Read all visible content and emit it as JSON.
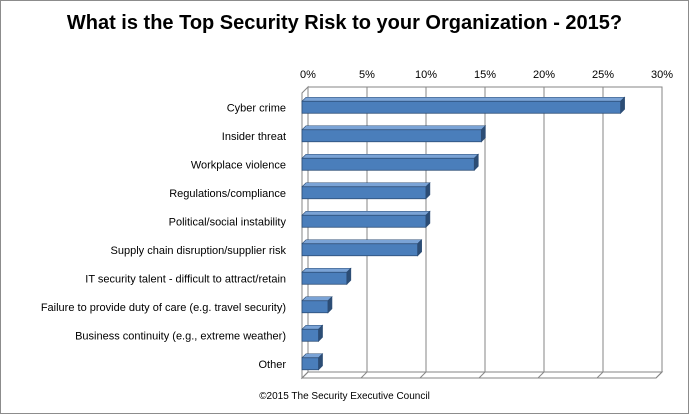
{
  "chart_data": {
    "type": "bar",
    "orientation": "horizontal",
    "title": "What is the Top Security Risk to your Organization - 2015?",
    "categories": [
      "Cyber crime",
      "Insider threat",
      "Workplace violence",
      "Regulations/compliance",
      "Political/social instability",
      "Supply chain disruption/supplier risk",
      "IT security talent - difficult to attract/retain",
      "Failure to provide duty of care (e.g. travel security)",
      "Business continuity (e.g., extreme weather)",
      "Other"
    ],
    "values": [
      27,
      15.2,
      14.6,
      10.5,
      10.5,
      9.8,
      3.8,
      2.2,
      1.4,
      1.4
    ],
    "value_unit": "%",
    "xlim": [
      0,
      30
    ],
    "xticks": [
      "0%",
      "5%",
      "10%",
      "15%",
      "20%",
      "25%",
      "30%"
    ],
    "x_axis_position": "top",
    "grid": true,
    "legend": "none",
    "bar_color": "#4a7ebb",
    "bar_edge_color": "#2c4d75"
  },
  "footer": "©2015 The Security Executive Council"
}
